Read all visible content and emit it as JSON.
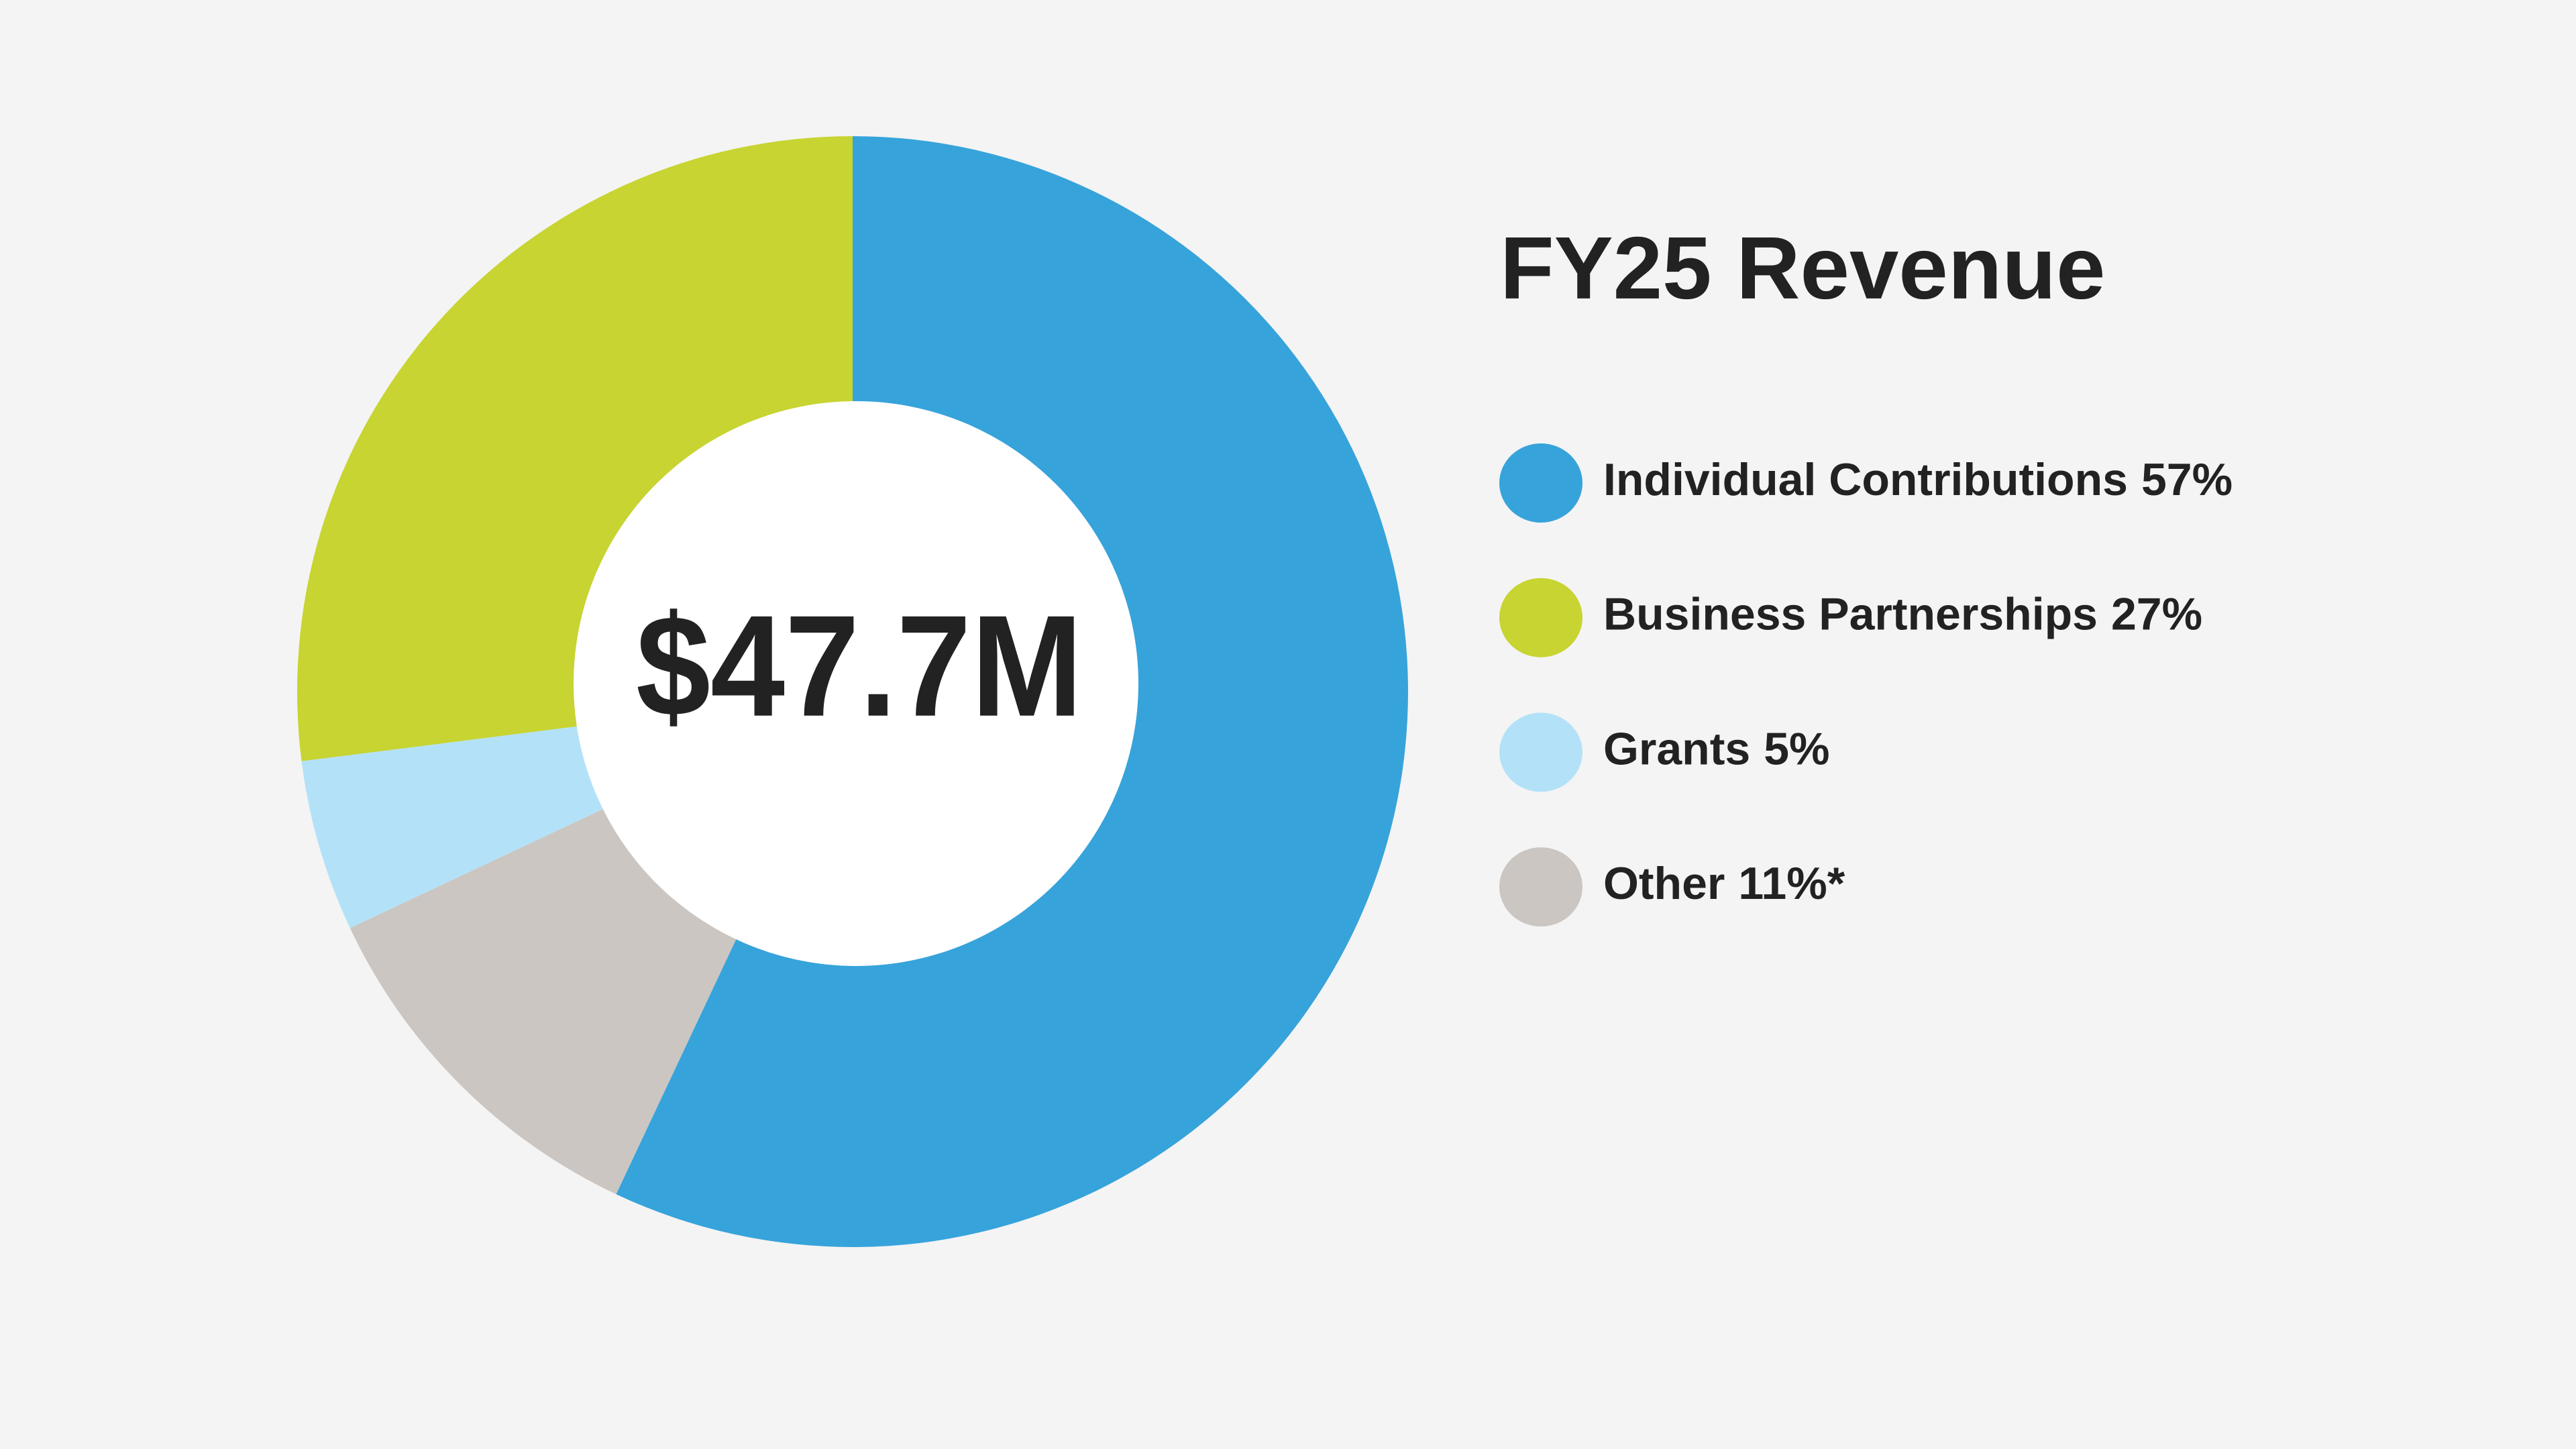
{
  "chart_data": {
    "type": "donut",
    "title": "FY25 Revenue",
    "center_label": "$47.7M",
    "categories": [
      "Individual Contributions",
      "Business Partnerships",
      "Grants",
      "Other"
    ],
    "values": [
      57,
      27,
      5,
      11
    ],
    "value_labels": [
      "57%",
      "27%",
      "5%",
      "11%*"
    ],
    "colors": [
      "#37a3db",
      "#c7d432",
      "#b3e2f8",
      "#cbc6c2"
    ]
  }
}
